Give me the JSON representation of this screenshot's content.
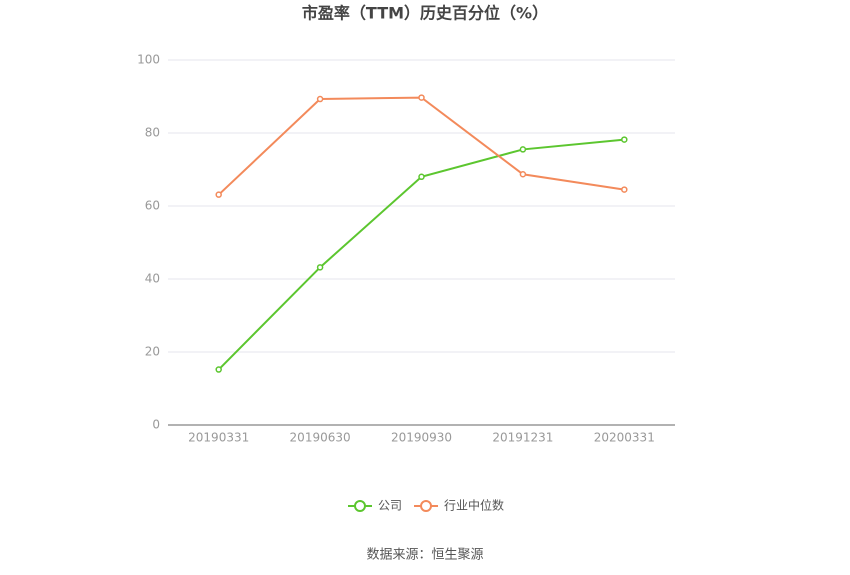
{
  "chart_data": {
    "type": "line",
    "title": "市盈率（TTM）历史百分位（%）",
    "categories": [
      "20190331",
      "20190630",
      "20190930",
      "20191231",
      "20200331"
    ],
    "series": [
      {
        "name": "公司",
        "color": "#5cc62f",
        "values": [
          15.2,
          43.2,
          68.0,
          75.5,
          78.2
        ]
      },
      {
        "name": "行业中位数",
        "color": "#f38a5b",
        "values": [
          63.1,
          89.3,
          89.7,
          68.7,
          64.5
        ]
      }
    ],
    "ylim": [
      0,
      100
    ],
    "yticks": [
      0,
      20,
      40,
      60,
      80,
      100
    ],
    "grid": true,
    "legend": "bottom",
    "source": "数据来源：恒生聚源"
  }
}
